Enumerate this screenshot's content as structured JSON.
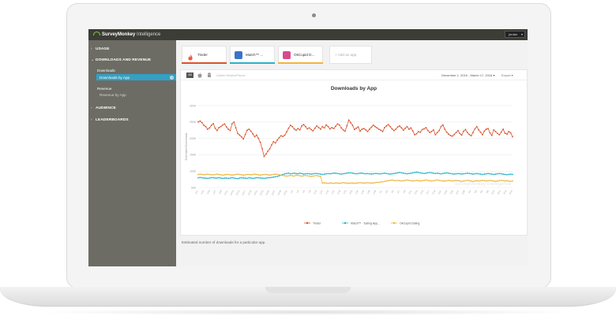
{
  "app": {
    "brand_bold": "SurveyMonkey",
    "brand_rest": " Intelligence",
    "user_menu": "jordan"
  },
  "sidebar": {
    "sections": [
      {
        "label": "USAGE",
        "chevron": "›"
      },
      {
        "label": "DOWNLOADS AND REVENUE",
        "chevron": "⌄"
      },
      {
        "label": "AUDIENCE",
        "chevron": "›"
      },
      {
        "label": "LEADERBOARDS",
        "chevron": "›"
      }
    ],
    "downloads_heading": "Downloads",
    "downloads_by_app": "Downloads by App",
    "revenue_heading": "Revenue",
    "revenue_by_app": "Revenue by App"
  },
  "apps": [
    {
      "name": "Tinder",
      "color": "#d9532c",
      "icon_color": "#ee5a3b"
    },
    {
      "name": "Match™ ...",
      "color": "#29b3c9",
      "icon_color": "#3a73c9"
    },
    {
      "name": "OkCupid D...",
      "color": "#f0b43c",
      "icon_color": "#d84a8e"
    }
  ],
  "add_app": "+ Add an app",
  "toolbar": {
    "platform_all": "All",
    "country": "United States/Phone",
    "date_range": "December 1, 2015 - March 17, 2016 ▾",
    "export": "Export ▾"
  },
  "chart_data": {
    "type": "line",
    "title": "Downloads by App",
    "ylabel": "Estimated Downloads",
    "xlabel": "",
    "yticks": [
      "50K",
      "100K",
      "150K",
      "200K",
      "250K",
      "300K"
    ],
    "ylim": [
      50,
      300
    ],
    "watermark": "SurveyMonkey Intelligence",
    "x_ticks": [
      "12/1",
      "12/3",
      "12/5",
      "12/7",
      "12/9",
      "12/11",
      "12/13",
      "12/15",
      "12/17",
      "12/19",
      "12/21",
      "12/23",
      "12/25",
      "12/27",
      "12/29",
      "12/31",
      "1/2",
      "1/4",
      "1/6",
      "1/8",
      "1/10",
      "1/12",
      "1/14",
      "1/16",
      "1/18",
      "1/20",
      "1/22",
      "1/24",
      "1/26",
      "1/28",
      "1/30",
      "2/1",
      "2/3",
      "2/5",
      "2/7",
      "2/9",
      "2/11",
      "2/13",
      "2/15",
      "2/17",
      "2/19",
      "2/21",
      "2/23",
      "2/25",
      "2/27",
      "2/29",
      "3/2",
      "3/4",
      "3/6",
      "3/8",
      "3/10",
      "3/12",
      "3/14",
      "3/16"
    ],
    "series": [
      {
        "name": "Tinder",
        "color": "#d9532c",
        "values": [
          250,
          253,
          248,
          240,
          236,
          228,
          232,
          240,
          245,
          231,
          224,
          233,
          236,
          241,
          244,
          235,
          228,
          224,
          245,
          250,
          232,
          215,
          210,
          205,
          198,
          212,
          225,
          228,
          222,
          214,
          205,
          210,
          200,
          188,
          168,
          145,
          152,
          161,
          168,
          180,
          190,
          186,
          195,
          202,
          208,
          206,
          210,
          220,
          231,
          240,
          236,
          229,
          225,
          230,
          226,
          238,
          242,
          236,
          229,
          232,
          227,
          223,
          231,
          238,
          233,
          228,
          236,
          232,
          241,
          236,
          229,
          233,
          230,
          237,
          244,
          241,
          232,
          226,
          222,
          238,
          256,
          248,
          240,
          227,
          231,
          235,
          222,
          228,
          230,
          226,
          221,
          228,
          234,
          240,
          236,
          232,
          228,
          225,
          221,
          233,
          238,
          242,
          236,
          229,
          224,
          228,
          235,
          238,
          232,
          225,
          231,
          236,
          228,
          232,
          223,
          211,
          214,
          221,
          219,
          227,
          229,
          233,
          224,
          218,
          221,
          226,
          211,
          218,
          224,
          236,
          241,
          228,
          219,
          213,
          209,
          207,
          212,
          218,
          224,
          215,
          210,
          222,
          227,
          218,
          212,
          208,
          218,
          229,
          236,
          226,
          219,
          211,
          222,
          228,
          230,
          217,
          209,
          226,
          221,
          215,
          211,
          219,
          228,
          216,
          213,
          221,
          217,
          205
        ]
      },
      {
        "name": "Match™ - Dating App...",
        "color": "#29b3c9",
        "values": [
          80,
          81,
          80,
          79,
          79,
          78,
          79,
          80,
          80,
          79,
          79,
          80,
          79,
          78,
          79,
          79,
          78,
          79,
          80,
          79,
          78,
          77,
          79,
          80,
          79,
          79,
          78,
          80,
          79,
          78,
          79,
          80,
          80,
          79,
          79,
          78,
          79,
          80,
          80,
          81,
          82,
          83,
          84,
          86,
          88,
          90,
          92,
          93,
          94,
          92,
          93,
          94,
          93,
          92,
          94,
          93,
          91,
          92,
          93,
          92,
          91,
          92,
          93,
          93,
          92,
          91,
          90,
          91,
          92,
          93,
          92,
          93,
          94,
          94,
          93,
          92,
          91,
          92,
          93,
          94,
          95,
          95,
          94,
          93,
          92,
          93,
          94,
          94,
          93,
          92,
          93,
          92,
          91,
          92,
          93,
          93,
          92,
          92,
          93,
          94,
          93,
          92,
          91,
          92,
          93,
          94,
          95,
          96,
          95,
          94,
          93,
          92,
          93,
          94,
          95,
          96,
          97,
          96,
          95,
          94,
          93,
          94,
          95,
          96,
          95,
          94,
          93,
          94,
          93,
          92,
          93,
          94,
          95,
          94,
          93,
          92,
          91,
          92,
          93,
          92,
          91,
          92,
          93,
          94,
          93,
          92,
          91,
          92,
          93,
          92,
          91,
          90,
          91,
          92,
          93,
          92,
          91,
          90,
          91,
          92,
          93,
          92,
          91,
          90,
          89,
          90,
          91,
          90
        ]
      },
      {
        "name": "OkCupid Dating",
        "color": "#f0b43c",
        "values": [
          90,
          91,
          90,
          89,
          90,
          91,
          90,
          89,
          89,
          90,
          91,
          90,
          89,
          88,
          89,
          90,
          90,
          89,
          88,
          89,
          90,
          91,
          90,
          89,
          88,
          89,
          90,
          90,
          89,
          90,
          91,
          90,
          89,
          88,
          89,
          90,
          90,
          89,
          88,
          89,
          90,
          91,
          90,
          89,
          88,
          87,
          86,
          85,
          86,
          87,
          86,
          85,
          88,
          87,
          86,
          85,
          86,
          87,
          86,
          85,
          84,
          85,
          86,
          87,
          85,
          84,
          64,
          64,
          64,
          63,
          64,
          64,
          63,
          64,
          64,
          63,
          64,
          65,
          64,
          64,
          63,
          64,
          64,
          63,
          64,
          64,
          65,
          64,
          64,
          64,
          65,
          64,
          64,
          64,
          65,
          66,
          66,
          67,
          68,
          69,
          70,
          71,
          72,
          73,
          72,
          71,
          72,
          71,
          70,
          71,
          72,
          73,
          72,
          71,
          70,
          71,
          72,
          71,
          70,
          71,
          72,
          73,
          72,
          71,
          70,
          71,
          72,
          73,
          72,
          71,
          70,
          70,
          71,
          72,
          71,
          70,
          71,
          72,
          71,
          70,
          69,
          70,
          71,
          72,
          71,
          70,
          69,
          70,
          71,
          70,
          71,
          72,
          71,
          70,
          71,
          72,
          71,
          70,
          69,
          70,
          71,
          72,
          71,
          70,
          71,
          70,
          69,
          70
        ]
      }
    ]
  },
  "caption": "Estimated number of downloads for a particular app."
}
